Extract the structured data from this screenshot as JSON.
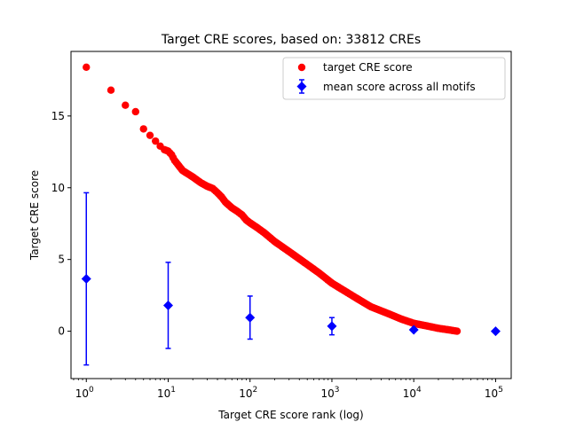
{
  "chart_data": {
    "type": "scatter",
    "title": "Target CRE scores, based on: 33812 CREs",
    "xlabel": "Target CRE score rank (log)",
    "ylabel": "Target CRE score",
    "x_scale": "log",
    "xlim": [
      0.65,
      155000
    ],
    "ylim": [
      -3.3,
      19.5
    ],
    "x_ticks": [
      {
        "value": 1,
        "base": "10",
        "exp": "0"
      },
      {
        "value": 10,
        "base": "10",
        "exp": "1"
      },
      {
        "value": 100,
        "base": "10",
        "exp": "2"
      },
      {
        "value": 1000,
        "base": "10",
        "exp": "3"
      },
      {
        "value": 10000,
        "base": "10",
        "exp": "4"
      },
      {
        "value": 100000,
        "base": "10",
        "exp": "5"
      }
    ],
    "y_ticks": [
      {
        "value": 0,
        "label": "0"
      },
      {
        "value": 5,
        "label": "5"
      },
      {
        "value": 10,
        "label": "10"
      },
      {
        "value": 15,
        "label": "15"
      }
    ],
    "grid": false,
    "legend": "top-right",
    "series": [
      {
        "name": "target CRE score",
        "color": "#ff0000",
        "marker": "circle",
        "points": [
          [
            1,
            18.4
          ],
          [
            2,
            16.8
          ],
          [
            3,
            15.75
          ],
          [
            4,
            15.3
          ],
          [
            5,
            14.1
          ],
          [
            6,
            13.65
          ],
          [
            7,
            13.25
          ],
          [
            8,
            12.9
          ],
          [
            9,
            12.65
          ],
          [
            10,
            12.55
          ],
          [
            11,
            12.3
          ],
          [
            12,
            11.9
          ],
          [
            13,
            11.65
          ],
          [
            15,
            11.2
          ],
          [
            17,
            11.0
          ],
          [
            20,
            10.75
          ],
          [
            25,
            10.35
          ],
          [
            30,
            10.1
          ],
          [
            35,
            9.95
          ],
          [
            40,
            9.65
          ],
          [
            45,
            9.35
          ],
          [
            50,
            9.0
          ],
          [
            60,
            8.6
          ],
          [
            70,
            8.35
          ],
          [
            80,
            8.1
          ],
          [
            90,
            7.75
          ],
          [
            100,
            7.55
          ],
          [
            120,
            7.25
          ],
          [
            150,
            6.85
          ],
          [
            200,
            6.25
          ],
          [
            300,
            5.55
          ],
          [
            500,
            4.65
          ],
          [
            700,
            4.05
          ],
          [
            1000,
            3.35
          ],
          [
            2000,
            2.3
          ],
          [
            3000,
            1.7
          ],
          [
            5000,
            1.2
          ],
          [
            7000,
            0.85
          ],
          [
            10000,
            0.55
          ],
          [
            15000,
            0.35
          ],
          [
            20000,
            0.2
          ],
          [
            25000,
            0.12
          ],
          [
            30000,
            0.05
          ],
          [
            33812,
            0.0
          ]
        ]
      },
      {
        "name": "mean score across all motifs",
        "color": "#0000ff",
        "marker": "diamond",
        "points": [
          {
            "x": 1,
            "y": 3.65,
            "low": -2.35,
            "high": 9.65
          },
          {
            "x": 10,
            "y": 1.8,
            "low": -1.2,
            "high": 4.8
          },
          {
            "x": 100,
            "y": 0.95,
            "low": -0.55,
            "high": 2.45
          },
          {
            "x": 1000,
            "y": 0.35,
            "low": -0.25,
            "high": 0.95
          },
          {
            "x": 10000,
            "y": 0.1,
            "low": 0.1,
            "high": 0.1
          },
          {
            "x": 100000,
            "y": 0.0,
            "low": 0.0,
            "high": 0.0
          }
        ]
      }
    ]
  }
}
